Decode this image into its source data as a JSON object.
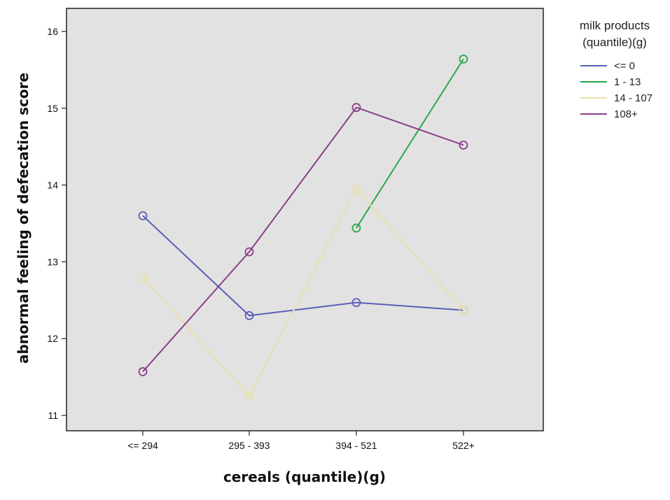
{
  "chart_data": {
    "type": "line",
    "xlabel": "cereals (quantile)(g)",
    "ylabel": "abnormal feeling of defecation score",
    "categories": [
      "<= 294",
      "295 - 393",
      "394 - 521",
      "522+"
    ],
    "ylim": [
      10.8,
      16.3
    ],
    "yticks": [
      11,
      12,
      13,
      14,
      15,
      16
    ],
    "grid": false,
    "legend_position": "right",
    "legend_title_lines": [
      "milk products",
      "(quantile)(g)"
    ],
    "series": [
      {
        "name": "<= 0",
        "color": "#5a5fb8",
        "values": [
          13.6,
          12.3,
          12.47,
          12.37
        ]
      },
      {
        "name": "1 - 13",
        "color": "#2aa84a",
        "values": [
          null,
          null,
          13.44,
          15.64
        ]
      },
      {
        "name": "14 - 107",
        "color": "#e8dfa8",
        "values": [
          12.8,
          11.25,
          13.95,
          12.37
        ]
      },
      {
        "name": "108+",
        "color": "#8a3f8a",
        "values": [
          11.57,
          13.13,
          15.01,
          14.52
        ]
      }
    ]
  }
}
